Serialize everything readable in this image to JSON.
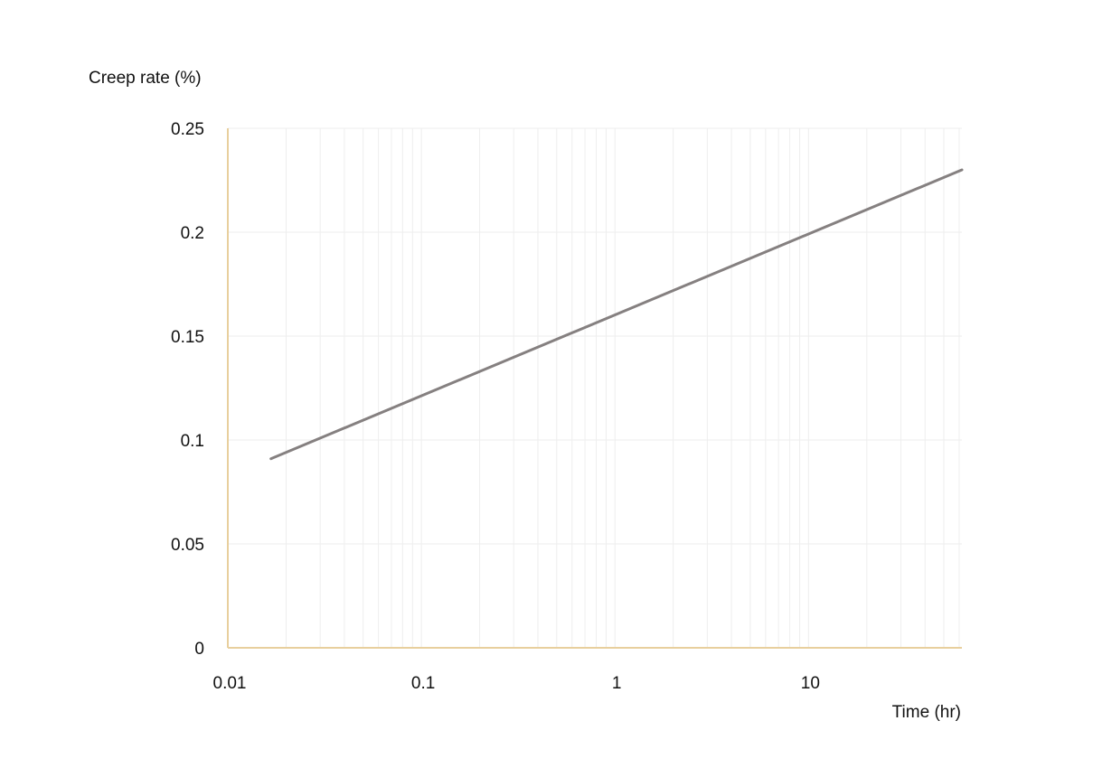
{
  "chart_data": {
    "type": "line",
    "xlabel": "Time (hr)",
    "ylabel": "Creep rate (%)",
    "x_scale": "log",
    "xlim": [
      0.01,
      62
    ],
    "ylim": [
      0,
      0.25
    ],
    "x_ticks": [
      {
        "value": 0.01,
        "label": "0.01"
      },
      {
        "value": 0.1,
        "label": "0.1"
      },
      {
        "value": 1,
        "label": "1"
      },
      {
        "value": 10,
        "label": "10"
      }
    ],
    "y_ticks": [
      {
        "value": 0,
        "label": "0"
      },
      {
        "value": 0.05,
        "label": "0.05"
      },
      {
        "value": 0.1,
        "label": "0.1"
      },
      {
        "value": 0.15,
        "label": "0.15"
      },
      {
        "value": 0.2,
        "label": "0.2"
      },
      {
        "value": 0.25,
        "label": "0.25"
      }
    ],
    "grid": true,
    "series": [
      {
        "color": "#858080",
        "x": [
          0.0167,
          62
        ],
        "y": [
          0.091,
          0.23
        ]
      }
    ],
    "colors": {
      "axis": "#e8cf9d",
      "grid": "#eeeeee",
      "line": "#858080"
    }
  }
}
